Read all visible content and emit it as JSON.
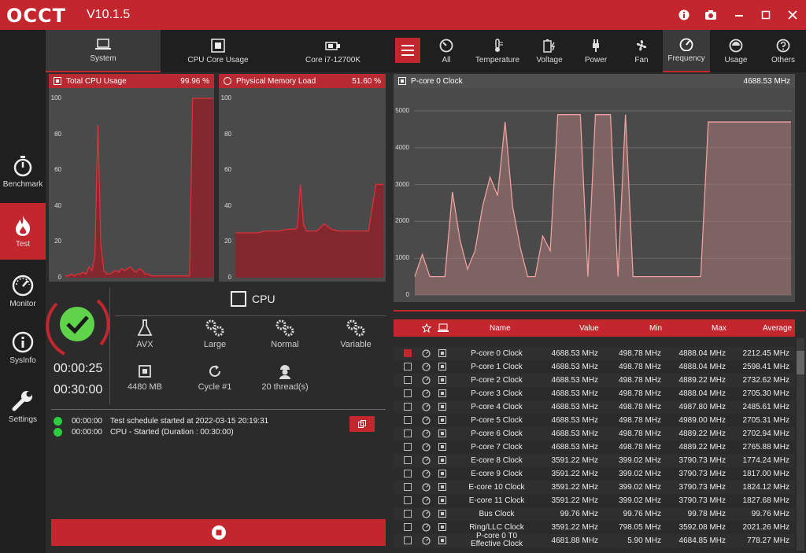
{
  "app": {
    "logo": "OCCT",
    "version": "V10.1.5"
  },
  "sidebar": [
    {
      "label": "Benchmark",
      "icon": "stopwatch-icon"
    },
    {
      "label": "Test",
      "icon": "flame-icon",
      "active": true
    },
    {
      "label": "Monitor",
      "icon": "gauge-icon"
    },
    {
      "label": "SysInfo",
      "icon": "info-icon"
    },
    {
      "label": "Settings",
      "icon": "wrench-icon"
    }
  ],
  "left_tabs": [
    {
      "label": "System",
      "icon": "laptop-icon",
      "active": true
    },
    {
      "label": "CPU Core Usage",
      "icon": "chip-icon"
    },
    {
      "label": "Core i7-12700K",
      "icon": "cpu-card-icon"
    }
  ],
  "cpu_chart": {
    "title": "Total CPU Usage",
    "value": "99.96 %",
    "ticks": [
      "100",
      "80",
      "60",
      "40",
      "20",
      "0"
    ]
  },
  "mem_chart": {
    "title": "Physical Memory Load",
    "value": "51.60 %",
    "ticks": [
      "100",
      "80",
      "60",
      "40",
      "20",
      "0"
    ]
  },
  "test": {
    "target": "CPU",
    "elapsed": "00:00:25",
    "duration": "00:30:00",
    "options": [
      {
        "label": "AVX",
        "icon": "flask-icon"
      },
      {
        "label": "Large",
        "icon": "gears-icon"
      },
      {
        "label": "Normal",
        "icon": "gears-icon"
      },
      {
        "label": "Variable",
        "icon": "gears-icon"
      },
      {
        "label": "4480 MB",
        "icon": "memory-chip-icon"
      },
      {
        "label": "Cycle #1",
        "icon": "refresh-icon"
      },
      {
        "label": "20 thread(s)",
        "icon": "worker-icon"
      }
    ]
  },
  "log": [
    {
      "time": "00:00:00",
      "text": "Test schedule started at 2022-03-15 20:19:31"
    },
    {
      "time": "00:00:00",
      "text": "CPU - Started (Duration : 00:30:00)"
    }
  ],
  "right_tabs": [
    {
      "label": "All",
      "icon": "dial-icon"
    },
    {
      "label": "Temperature",
      "icon": "thermometer-icon"
    },
    {
      "label": "Voltage",
      "icon": "battery-bolt-icon"
    },
    {
      "label": "Power",
      "icon": "plug-icon"
    },
    {
      "label": "Fan",
      "icon": "fan-icon"
    },
    {
      "label": "Frequency",
      "icon": "speedometer-icon",
      "active": true
    },
    {
      "label": "Usage",
      "icon": "usage-gauge-icon"
    },
    {
      "label": "Others",
      "icon": "question-icon"
    }
  ],
  "freq_chart": {
    "title": "P-core 0 Clock",
    "value": "4688.53 MHz",
    "ticks": [
      "5000",
      "4000",
      "3000",
      "2000",
      "1000",
      "0"
    ]
  },
  "chart_data": [
    {
      "type": "area",
      "title": "Total CPU Usage",
      "ylim": [
        0,
        100
      ],
      "x": [
        0,
        2,
        4,
        6,
        8,
        10,
        12,
        14,
        16,
        18,
        20,
        22,
        24,
        26,
        28,
        30,
        32,
        34,
        36,
        38,
        40,
        42,
        44,
        46,
        48,
        50,
        52,
        54,
        56,
        58,
        60,
        62,
        64,
        66,
        68,
        70,
        72,
        74,
        76,
        78,
        80,
        82,
        84,
        86,
        88,
        90,
        92,
        94,
        96,
        98,
        100
      ],
      "values": [
        1,
        1,
        2,
        1,
        2,
        2,
        3,
        2,
        6,
        4,
        12,
        85,
        18,
        4,
        2,
        2,
        3,
        4,
        3,
        5,
        4,
        5,
        6,
        4,
        3,
        5,
        4,
        2,
        2,
        1,
        1,
        1,
        1,
        1,
        1,
        1,
        1,
        1,
        1,
        1,
        1,
        1,
        1,
        100,
        100,
        100,
        100,
        100,
        100,
        100,
        100
      ]
    },
    {
      "type": "area",
      "title": "Physical Memory Load",
      "ylim": [
        0,
        100
      ],
      "x": [
        0,
        5,
        10,
        15,
        20,
        25,
        30,
        35,
        40,
        42,
        44,
        46,
        48,
        50,
        55,
        60,
        65,
        70,
        75,
        80,
        85,
        90,
        95,
        100
      ],
      "values": [
        25,
        25,
        25,
        25,
        26,
        26,
        26,
        27,
        27,
        28,
        52,
        30,
        26,
        26,
        26,
        30,
        27,
        26,
        26,
        26,
        26,
        26,
        52,
        52
      ]
    },
    {
      "type": "area",
      "title": "P-core 0 Clock",
      "ylim": [
        0,
        5000
      ],
      "x": [
        0,
        2,
        4,
        6,
        8,
        10,
        12,
        14,
        16,
        18,
        20,
        22,
        24,
        26,
        28,
        30,
        32,
        34,
        36,
        38,
        40,
        42,
        44,
        46,
        48,
        50,
        52,
        54,
        56,
        58,
        60,
        62,
        64,
        66,
        68,
        70,
        72,
        74,
        76,
        78,
        80,
        82,
        84,
        86,
        88,
        90,
        92,
        94,
        96,
        98,
        100
      ],
      "values": [
        500,
        1100,
        500,
        500,
        500,
        2800,
        1500,
        700,
        1200,
        2400,
        3200,
        2700,
        4700,
        2400,
        1300,
        500,
        500,
        1600,
        1200,
        4900,
        4900,
        4900,
        4900,
        500,
        4900,
        4900,
        4900,
        500,
        4900,
        500,
        500,
        500,
        500,
        500,
        500,
        500,
        500,
        500,
        500,
        4700,
        4700,
        4700,
        4700,
        4700,
        4700,
        4700,
        4700,
        4700,
        4700,
        4700,
        4700
      ]
    }
  ],
  "table": {
    "headers": [
      "Name",
      "Value",
      "Min",
      "Max",
      "Average"
    ],
    "rows": [
      {
        "checked": true,
        "name": "P-core 0 Clock",
        "value": "4688.53 MHz",
        "min": "498.78 MHz",
        "max": "4888.04 MHz",
        "avg": "2212.45 MHz"
      },
      {
        "name": "P-core 1 Clock",
        "value": "4688.53 MHz",
        "min": "498.78 MHz",
        "max": "4888.04 MHz",
        "avg": "2598.41 MHz"
      },
      {
        "name": "P-core 2 Clock",
        "value": "4688.53 MHz",
        "min": "498.78 MHz",
        "max": "4889.22 MHz",
        "avg": "2732.62 MHz"
      },
      {
        "name": "P-core 3 Clock",
        "value": "4688.53 MHz",
        "min": "498.78 MHz",
        "max": "4888.04 MHz",
        "avg": "2705.30 MHz"
      },
      {
        "name": "P-core 4 Clock",
        "value": "4688.53 MHz",
        "min": "498.78 MHz",
        "max": "4987.80 MHz",
        "avg": "2485.61 MHz"
      },
      {
        "name": "P-core 5 Clock",
        "value": "4688.53 MHz",
        "min": "498.78 MHz",
        "max": "4989.00 MHz",
        "avg": "2705.31 MHz"
      },
      {
        "name": "P-core 6 Clock",
        "value": "4688.53 MHz",
        "min": "498.78 MHz",
        "max": "4889.22 MHz",
        "avg": "2702.94 MHz"
      },
      {
        "name": "P-core 7 Clock",
        "value": "4688.53 MHz",
        "min": "498.78 MHz",
        "max": "4889.22 MHz",
        "avg": "2765.88 MHz"
      },
      {
        "name": "E-core 8 Clock",
        "value": "3591.22 MHz",
        "min": "399.02 MHz",
        "max": "3790.73 MHz",
        "avg": "1774.24 MHz"
      },
      {
        "name": "E-core 9 Clock",
        "value": "3591.22 MHz",
        "min": "399.02 MHz",
        "max": "3790.73 MHz",
        "avg": "1817.00 MHz"
      },
      {
        "name": "E-core 10 Clock",
        "value": "3591.22 MHz",
        "min": "399.02 MHz",
        "max": "3790.73 MHz",
        "avg": "1824.12 MHz"
      },
      {
        "name": "E-core 11 Clock",
        "value": "3591.22 MHz",
        "min": "399.02 MHz",
        "max": "3790.73 MHz",
        "avg": "1827.68 MHz"
      },
      {
        "name": "Bus Clock",
        "value": "99.76 MHz",
        "min": "99.76 MHz",
        "max": "99.78 MHz",
        "avg": "99.76 MHz"
      },
      {
        "name": "Ring/LLC Clock",
        "value": "3591.22 MHz",
        "min": "798.05 MHz",
        "max": "3592.08 MHz",
        "avg": "2021.26 MHz"
      },
      {
        "name": "P-core 0 T0 Effective Clock",
        "value": "4681.88 MHz",
        "min": "5.90 MHz",
        "max": "4684.85 MHz",
        "avg": "778.27 MHz"
      }
    ]
  },
  "colors": {
    "accent": "#c4262e",
    "ok": "#2ecc40"
  }
}
